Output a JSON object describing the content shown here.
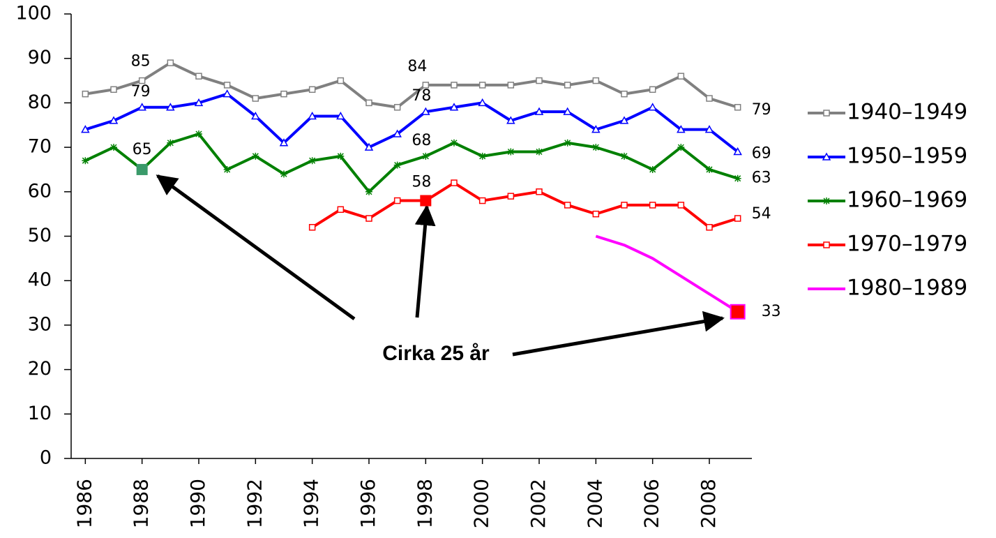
{
  "chart_data": {
    "type": "line",
    "x": [
      1986,
      1987,
      1988,
      1989,
      1990,
      1991,
      1992,
      1993,
      1994,
      1995,
      1996,
      1997,
      1998,
      1999,
      2000,
      2001,
      2002,
      2003,
      2004,
      2005,
      2006,
      2007,
      2008,
      2009
    ],
    "xlim": [
      1985.5,
      2009.5
    ],
    "xticks": [
      1986,
      1988,
      1990,
      1992,
      1994,
      1996,
      1998,
      2000,
      2002,
      2004,
      2006,
      2008
    ],
    "ylim": [
      0,
      100
    ],
    "yticks": [
      0,
      10,
      20,
      30,
      40,
      50,
      60,
      70,
      80,
      90,
      100
    ],
    "grid": false,
    "legend": "right",
    "annotation": "Cirka 25 år",
    "series": [
      {
        "name": "1940–1949",
        "color": "#808080",
        "marker": "square",
        "values": [
          82,
          83,
          85,
          89,
          86,
          84,
          81,
          82,
          83,
          85,
          80,
          79,
          84,
          84,
          84,
          84,
          85,
          84,
          85,
          82,
          83,
          86,
          81,
          79
        ]
      },
      {
        "name": "1950–1959",
        "color": "#0000ff",
        "marker": "triangle",
        "values": [
          74,
          76,
          79,
          79,
          80,
          82,
          77,
          71,
          77,
          77,
          70,
          73,
          78,
          79,
          80,
          76,
          78,
          78,
          74,
          76,
          79,
          74,
          74,
          69
        ]
      },
      {
        "name": "1960–1969",
        "color": "#008000",
        "marker": "star",
        "values": [
          67,
          70,
          65,
          71,
          73,
          65,
          68,
          64,
          67,
          68,
          60,
          66,
          68,
          71,
          68,
          69,
          69,
          71,
          70,
          68,
          65,
          70,
          65,
          63
        ]
      },
      {
        "name": "1970–1979",
        "color": "#ff0000",
        "marker": "square",
        "values": [
          null,
          null,
          null,
          null,
          null,
          null,
          null,
          null,
          52,
          56,
          54,
          58,
          58,
          62,
          58,
          59,
          60,
          57,
          55,
          57,
          57,
          57,
          52,
          54
        ]
      },
      {
        "name": "1980–1989",
        "color": "#ff00ff",
        "marker": "none",
        "values": [
          null,
          null,
          null,
          null,
          null,
          null,
          null,
          null,
          null,
          null,
          null,
          null,
          null,
          null,
          null,
          null,
          null,
          null,
          50,
          48,
          45,
          41,
          37,
          33
        ]
      }
    ]
  }
}
